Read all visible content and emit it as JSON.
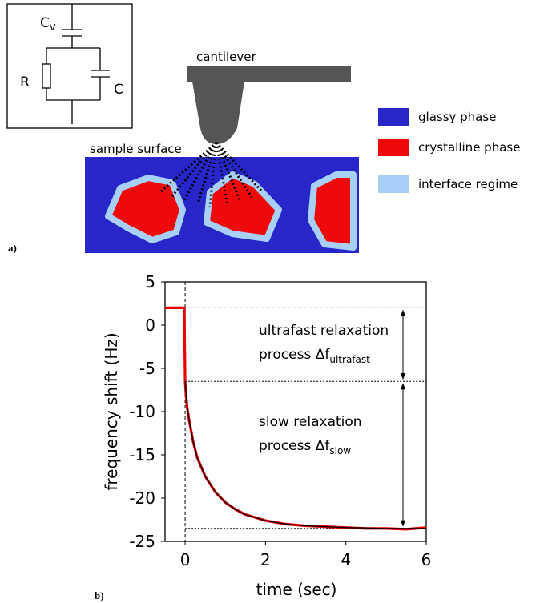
{
  "diagram": {
    "panel_label": "a)",
    "circuit": {
      "cv": "C",
      "cv_sub": "V",
      "r": "R",
      "c": "C"
    },
    "cantilever": "cantilever",
    "surface": "sample surface",
    "legend": [
      {
        "label": "glassy phase",
        "color": "#2626c9"
      },
      {
        "label": "crystalline phase",
        "color": "#ee0a0a"
      },
      {
        "label": "interface regime",
        "color": "#a8cff5"
      }
    ]
  },
  "chart_data": {
    "type": "line",
    "panel_label": "b)",
    "xlabel": "time (sec)",
    "ylabel": "frequency shift (Hz)",
    "xlim": [
      -0.5,
      6
    ],
    "xticks": [
      0,
      2,
      4,
      6
    ],
    "ylim": [
      -25,
      5
    ],
    "yticks": [
      -25,
      -20,
      -15,
      -10,
      -5,
      0,
      5
    ],
    "series": [
      {
        "color": "#e60000",
        "x": [
          -0.5,
          -0.25,
          -0.02,
          0,
          0.02,
          0.05,
          0.1,
          0.2,
          0.3,
          0.5,
          0.75,
          1,
          1.25,
          1.5,
          2,
          2.5,
          3,
          3.5,
          4,
          4.5,
          5,
          5.5,
          6
        ],
        "values": [
          2,
          2,
          2,
          -6.5,
          -8,
          -9.5,
          -11,
          -13.5,
          -15.3,
          -17.5,
          -19.3,
          -20.5,
          -21.3,
          -21.9,
          -22.6,
          -23,
          -23.2,
          -23.3,
          -23.4,
          -23.5,
          -23.5,
          -23.6,
          -23.4
        ]
      },
      {
        "color": "#000000",
        "x": [
          0,
          0.05,
          0.1,
          0.2,
          0.3,
          0.5,
          0.75,
          1,
          1.25,
          1.5,
          2,
          2.5,
          3,
          3.5,
          4,
          4.5,
          5,
          5.5,
          6
        ],
        "values": [
          -6.5,
          -9.4,
          -11,
          -13.5,
          -15.3,
          -17.5,
          -19.3,
          -20.5,
          -21.3,
          -21.9,
          -22.6,
          -23,
          -23.2,
          -23.3,
          -23.4,
          -23.45,
          -23.5,
          -23.5,
          -23.5
        ]
      }
    ],
    "hlines": [
      2,
      -6.5,
      -23.5
    ],
    "vline": 0,
    "annotations": [
      {
        "lines": [
          "ultrafast relaxation",
          "process Δf"
        ],
        "sub": "ultrafast"
      },
      {
        "lines": [
          "slow relaxation",
          "process Δf"
        ],
        "sub": "slow"
      }
    ]
  }
}
